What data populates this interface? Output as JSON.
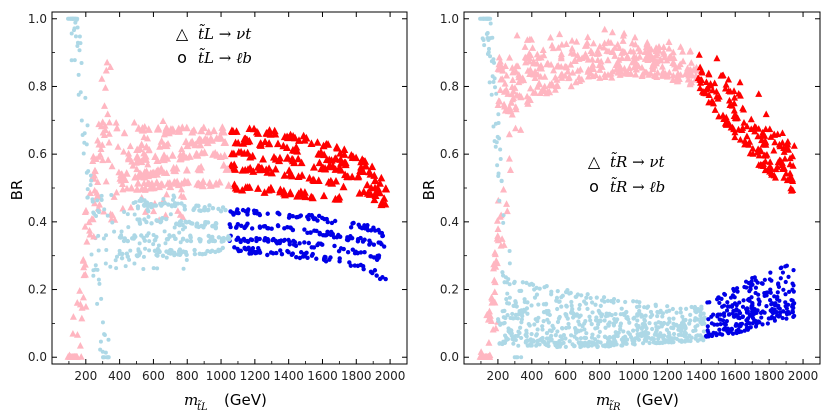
{
  "chart_data": [
    {
      "type": "scatter",
      "panel": "left",
      "xlabel": {
        "main": "m",
        "sub": "t̃L",
        "unit": "(GeV)"
      },
      "ylabel": "BR",
      "xlim": [
        0,
        2100
      ],
      "ylim": [
        -0.02,
        1.02
      ],
      "xticks": [
        "200",
        "400",
        "600",
        "800",
        "1000",
        "1200",
        "1400",
        "1600",
        "1800",
        "2000"
      ],
      "yticks": [
        "0.0",
        "0.2",
        "0.4",
        "0.6",
        "0.8",
        "1.0"
      ],
      "legend": {
        "placement": "top-center",
        "entries": [
          {
            "symbol": "△",
            "label": "t̃L → νt"
          },
          {
            "symbol": "o",
            "label": "t̃L → ℓb"
          }
        ]
      },
      "colors": {
        "nu_t_low": "#ffb6c1",
        "nu_t_high": "#ff0000",
        "l_b_low": "#add8e6",
        "l_b_high": "#0000e6"
      },
      "series": [
        {
          "name": "t̃L → νt",
          "marker": "triangle",
          "bands": [
            {
              "x_range": [
                1050,
                1980
              ],
              "color_key": "nu_t_high",
              "points": [
                [
                  1050,
                  0.67
                ],
                [
                  1200,
                  0.665
                ],
                [
                  1400,
                  0.655
                ],
                [
                  1600,
                  0.63
                ],
                [
                  1800,
                  0.59
                ],
                [
                  1960,
                  0.53
                ]
              ]
            },
            {
              "x_range": [
                1050,
                1980
              ],
              "color_key": "nu_t_high",
              "points": [
                [
                  1050,
                  0.64
                ],
                [
                  1300,
                  0.63
                ],
                [
                  1500,
                  0.61
                ],
                [
                  1700,
                  0.58
                ],
                [
                  1880,
                  0.54
                ],
                [
                  1970,
                  0.5
                ]
              ]
            },
            {
              "x_range": [
                1050,
                1980
              ],
              "color_key": "nu_t_high",
              "points": [
                [
                  1050,
                  0.6
                ],
                [
                  1300,
                  0.59
                ],
                [
                  1500,
                  0.575
                ],
                [
                  1700,
                  0.55
                ],
                [
                  1880,
                  0.51
                ],
                [
                  1970,
                  0.47
                ]
              ]
            },
            {
              "x_range": [
                1050,
                1980
              ],
              "color_key": "nu_t_high",
              "points": [
                [
                  1050,
                  0.56
                ],
                [
                  1300,
                  0.55
                ],
                [
                  1500,
                  0.535
                ],
                [
                  1700,
                  0.51
                ],
                [
                  1880,
                  0.48
                ],
                [
                  1970,
                  0.45
                ]
              ]
            },
            {
              "x_range": [
                1050,
                1700
              ],
              "color_key": "nu_t_high",
              "points": [
                [
                  1100,
                  0.5
                ],
                [
                  1300,
                  0.49
                ],
                [
                  1500,
                  0.48
                ],
                [
                  1700,
                  0.47
                ]
              ]
            },
            {
              "x_range": [
                500,
                1050
              ],
              "color_key": "nu_t_low",
              "points": [
                [
                  500,
                  0.67
                ],
                [
                  700,
                  0.67
                ],
                [
                  900,
                  0.67
                ],
                [
                  1050,
                  0.67
                ]
              ]
            },
            {
              "x_range": [
                500,
                1050
              ],
              "color_key": "nu_t_low",
              "points": [
                [
                  500,
                  0.62
                ],
                [
                  700,
                  0.63
                ],
                [
                  900,
                  0.635
                ],
                [
                  1050,
                  0.64
                ]
              ]
            },
            {
              "x_range": [
                450,
                1050
              ],
              "color_key": "nu_t_low",
              "points": [
                [
                  450,
                  0.58
                ],
                [
                  700,
                  0.59
                ],
                [
                  900,
                  0.6
                ],
                [
                  1050,
                  0.6
                ]
              ]
            },
            {
              "x_range": [
                400,
                1050
              ],
              "color_key": "nu_t_low",
              "points": [
                [
                  400,
                  0.53
                ],
                [
                  700,
                  0.55
                ],
                [
                  900,
                  0.56
                ],
                [
                  1050,
                  0.56
                ]
              ]
            },
            {
              "x_range": [
                400,
                1050
              ],
              "color_key": "nu_t_low",
              "points": [
                [
                  400,
                  0.5
                ],
                [
                  700,
                  0.51
                ],
                [
                  900,
                  0.51
                ],
                [
                  1050,
                  0.51
                ]
              ]
            }
          ]
        },
        {
          "name": "t̃L → ℓb",
          "marker": "circle",
          "bands": [
            {
              "x_range": [
                1050,
                1980
              ],
              "color_key": "l_b_high",
              "points": [
                [
                  1050,
                  0.43
                ],
                [
                  1300,
                  0.425
                ],
                [
                  1500,
                  0.415
                ],
                [
                  1700,
                  0.4
                ],
                [
                  1880,
                  0.38
                ],
                [
                  1970,
                  0.36
                ]
              ]
            },
            {
              "x_range": [
                1050,
                1980
              ],
              "color_key": "l_b_high",
              "points": [
                [
                  1050,
                  0.39
                ],
                [
                  1300,
                  0.385
                ],
                [
                  1500,
                  0.375
                ],
                [
                  1700,
                  0.36
                ],
                [
                  1880,
                  0.34
                ],
                [
                  1970,
                  0.33
                ]
              ]
            },
            {
              "x_range": [
                1050,
                1980
              ],
              "color_key": "l_b_high",
              "points": [
                [
                  1050,
                  0.35
                ],
                [
                  1300,
                  0.345
                ],
                [
                  1500,
                  0.335
                ],
                [
                  1700,
                  0.32
                ],
                [
                  1880,
                  0.3
                ],
                [
                  1970,
                  0.29
                ]
              ]
            },
            {
              "x_range": [
                1050,
                1980
              ],
              "color_key": "l_b_high",
              "points": [
                [
                  1050,
                  0.32
                ],
                [
                  1300,
                  0.31
                ],
                [
                  1500,
                  0.3
                ],
                [
                  1700,
                  0.285
                ],
                [
                  1880,
                  0.26
                ],
                [
                  1970,
                  0.23
                ]
              ]
            },
            {
              "x_range": [
                500,
                1050
              ],
              "color_key": "l_b_low",
              "points": [
                [
                  500,
                  0.45
                ],
                [
                  700,
                  0.45
                ],
                [
                  900,
                  0.44
                ],
                [
                  1050,
                  0.44
                ]
              ]
            },
            {
              "x_range": [
                500,
                1050
              ],
              "color_key": "l_b_low",
              "points": [
                [
                  500,
                  0.4
                ],
                [
                  700,
                  0.4
                ],
                [
                  900,
                  0.39
                ],
                [
                  1050,
                  0.39
                ]
              ]
            },
            {
              "x_range": [
                400,
                1050
              ],
              "color_key": "l_b_low",
              "points": [
                [
                  400,
                  0.35
                ],
                [
                  700,
                  0.355
                ],
                [
                  900,
                  0.35
                ],
                [
                  1050,
                  0.35
                ]
              ]
            },
            {
              "x_range": [
                400,
                1050
              ],
              "color_key": "l_b_low",
              "points": [
                [
                  400,
                  0.3
                ],
                [
                  700,
                  0.31
                ],
                [
                  900,
                  0.31
                ],
                [
                  1050,
                  0.32
                ]
              ]
            }
          ]
        }
      ]
    },
    {
      "type": "scatter",
      "panel": "right",
      "xlabel": {
        "main": "m",
        "sub": "t̃R",
        "unit": "(GeV)"
      },
      "ylabel": "BR",
      "xlim": [
        0,
        2100
      ],
      "ylim": [
        -0.02,
        1.02
      ],
      "xticks": [
        "200",
        "400",
        "600",
        "800",
        "1000",
        "1200",
        "1400",
        "1600",
        "1800",
        "2000"
      ],
      "yticks": [
        "0.0",
        "0.2",
        "0.4",
        "0.6",
        "0.8",
        "1.0"
      ],
      "legend": {
        "placement": "center",
        "entries": [
          {
            "symbol": "△",
            "label": "t̃R → νt"
          },
          {
            "symbol": "o",
            "label": "t̃R → ℓb"
          }
        ]
      },
      "colors": {
        "nu_t_low": "#ffb6c1",
        "nu_t_high": "#ff0000",
        "l_b_low": "#add8e6",
        "l_b_high": "#0000e6"
      },
      "series": [
        {
          "name": "t̃R → νt",
          "marker": "triangle",
          "regions": [
            {
              "x_range": [
                200,
                1380
              ],
              "color_key": "nu_t_low",
              "upper": [
                [
                  200,
                  0.94
                ],
                [
                  500,
                  0.97
                ],
                [
                  800,
                  0.97
                ],
                [
                  1100,
                  0.95
                ],
                [
                  1380,
                  0.91
                ]
              ],
              "lower": [
                [
                  200,
                  0.7
                ],
                [
                  500,
                  0.78
                ],
                [
                  800,
                  0.82
                ],
                [
                  1100,
                  0.83
                ],
                [
                  1380,
                  0.8
                ]
              ]
            },
            {
              "x_range": [
                1380,
                1950
              ],
              "color_key": "nu_t_high",
              "upper": [
                [
                  1380,
                  0.91
                ],
                [
                  1500,
                  0.89
                ],
                [
                  1700,
                  0.81
                ],
                [
                  1850,
                  0.71
                ],
                [
                  1950,
                  0.63
                ]
              ],
              "lower": [
                [
                  1380,
                  0.8
                ],
                [
                  1500,
                  0.7
                ],
                [
                  1700,
                  0.58
                ],
                [
                  1850,
                  0.52
                ],
                [
                  1950,
                  0.48
                ]
              ]
            }
          ]
        },
        {
          "name": "t̃R → ℓb",
          "marker": "circle",
          "regions": [
            {
              "x_range": [
                200,
                1420
              ],
              "color_key": "l_b_low",
              "upper": [
                [
                  200,
                  0.26
                ],
                [
                  400,
                  0.22
                ],
                [
                  800,
                  0.18
                ],
                [
                  1100,
                  0.16
                ],
                [
                  1420,
                  0.15
                ]
              ],
              "lower": [
                [
                  200,
                  0.04
                ],
                [
                  500,
                  0.03
                ],
                [
                  800,
                  0.03
                ],
                [
                  1100,
                  0.04
                ],
                [
                  1420,
                  0.05
                ]
              ]
            },
            {
              "x_range": [
                1420,
                1950
              ],
              "color_key": "l_b_high",
              "upper": [
                [
                  1420,
                  0.17
                ],
                [
                  1600,
                  0.21
                ],
                [
                  1800,
                  0.26
                ],
                [
                  1950,
                  0.28
                ]
              ],
              "lower": [
                [
                  1420,
                  0.06
                ],
                [
                  1600,
                  0.07
                ],
                [
                  1800,
                  0.1
                ],
                [
                  1950,
                  0.12
                ]
              ]
            }
          ]
        }
      ]
    }
  ]
}
